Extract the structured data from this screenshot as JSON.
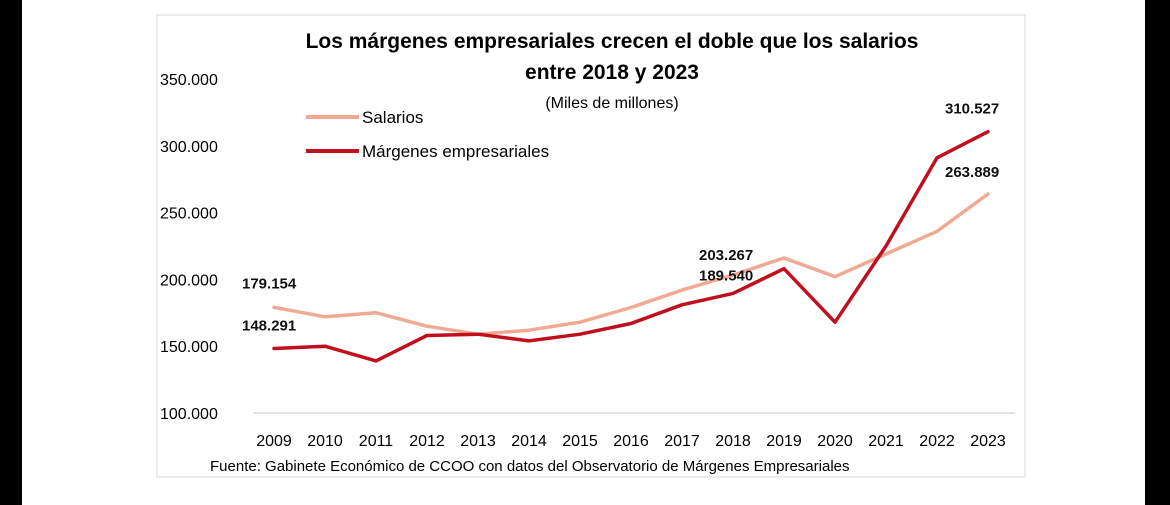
{
  "colors": {
    "salarios": "#f0aa93",
    "margenes": "#c0101f",
    "background": "#ffffff",
    "axis": "#d9d9d9"
  },
  "chart_data": {
    "type": "line",
    "title": "Los márgenes empresariales crecen el doble que los salarios",
    "title_line2": "entre 2018 y 2023",
    "subtitle": "(Miles de millones)",
    "source": "Fuente: Gabinete Económico de CCOO con datos del Observatorio de Márgenes Empresariales",
    "categories": [
      "2009",
      "2010",
      "2011",
      "2012",
      "2013",
      "2014",
      "2015",
      "2016",
      "2017",
      "2018",
      "2019",
      "2020",
      "2021",
      "2022",
      "2023"
    ],
    "y_ticks": [
      100000,
      150000,
      200000,
      250000,
      300000,
      350000
    ],
    "y_tick_labels": [
      "100.000",
      "150.000",
      "200.000",
      "250.000",
      "300.000",
      "350.000"
    ],
    "ylim": [
      100000,
      350000
    ],
    "legend_position": "top-left",
    "series": [
      {
        "name": "Salarios",
        "color_key": "salarios",
        "values": [
          179154,
          172000,
          175000,
          165000,
          159000,
          162000,
          168000,
          179000,
          192000,
          203267,
          216000,
          202000,
          219000,
          236000,
          263889
        ],
        "labels": [
          {
            "index": 0,
            "text": "179.154"
          },
          {
            "index": 9,
            "text": "203.267"
          },
          {
            "index": 14,
            "text": "263.889"
          }
        ]
      },
      {
        "name": "Márgenes empresariales",
        "color_key": "margenes",
        "values": [
          148291,
          150000,
          139000,
          158000,
          159000,
          154000,
          159000,
          167000,
          181000,
          189540,
          208000,
          168000,
          225000,
          291000,
          310527
        ],
        "labels": [
          {
            "index": 0,
            "text": "148.291"
          },
          {
            "index": 9,
            "text": "189.540"
          },
          {
            "index": 14,
            "text": "310.527"
          }
        ]
      }
    ]
  }
}
